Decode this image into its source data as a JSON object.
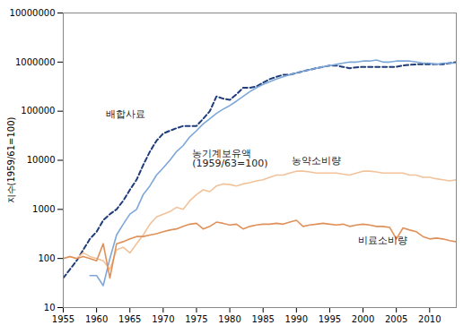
{
  "chart_data": {
    "type": "line",
    "log": "y",
    "grid": false,
    "y_label": "지수(1959/61=100)",
    "xlim": [
      1955,
      2014
    ],
    "xticks": [
      1955,
      1960,
      1965,
      1970,
      1975,
      1980,
      1985,
      1990,
      1995,
      2000,
      2005,
      2010
    ],
    "ylim": [
      10,
      10000000
    ],
    "yticks": [
      10,
      100,
      1000,
      10000,
      100000,
      1000000,
      10000000
    ],
    "x": [
      1955,
      1956,
      1957,
      1958,
      1959,
      1960,
      1961,
      1962,
      1963,
      1964,
      1965,
      1966,
      1967,
      1968,
      1969,
      1970,
      1971,
      1972,
      1973,
      1974,
      1975,
      1976,
      1977,
      1978,
      1979,
      1980,
      1981,
      1982,
      1983,
      1984,
      1985,
      1986,
      1987,
      1988,
      1989,
      1990,
      1991,
      1992,
      1993,
      1994,
      1995,
      1996,
      1997,
      1998,
      1999,
      2000,
      2001,
      2002,
      2003,
      2004,
      2005,
      2006,
      2007,
      2008,
      2009,
      2010,
      2011,
      2012,
      2013,
      2014
    ],
    "series": [
      {
        "name": "배합사료",
        "color": "#1f3d7a",
        "line_style": "dashed",
        "values": [
          40,
          60,
          90,
          150,
          250,
          350,
          600,
          800,
          1000,
          1500,
          2500,
          4000,
          8000,
          15000,
          25000,
          35000,
          40000,
          45000,
          50000,
          50000,
          50000,
          70000,
          100000,
          200000,
          180000,
          170000,
          220000,
          300000,
          300000,
          320000,
          380000,
          450000,
          500000,
          550000,
          550000,
          600000,
          650000,
          700000,
          750000,
          800000,
          850000,
          850000,
          800000,
          750000,
          780000,
          800000,
          800000,
          800000,
          800000,
          800000,
          800000,
          850000,
          880000,
          900000,
          900000,
          900000,
          900000,
          900000,
          950000,
          1000000
        ]
      },
      {
        "name": "농기계보유액\n(1959/63=100)",
        "color": "#7da7d9",
        "line_style": "solid",
        "values": [
          null,
          null,
          null,
          null,
          45,
          45,
          28,
          100,
          300,
          500,
          800,
          1000,
          2000,
          3000,
          5000,
          7000,
          10000,
          15000,
          20000,
          30000,
          40000,
          55000,
          70000,
          90000,
          110000,
          130000,
          160000,
          200000,
          250000,
          300000,
          350000,
          400000,
          450000,
          500000,
          550000,
          600000,
          650000,
          700000,
          750000,
          800000,
          850000,
          900000,
          950000,
          1000000,
          1000000,
          1050000,
          1050000,
          1100000,
          1000000,
          1000000,
          1050000,
          1050000,
          1050000,
          1000000,
          950000,
          950000,
          900000,
          950000,
          950000,
          950000
        ]
      },
      {
        "name": "농약소비량",
        "color": "#f2c29b",
        "line_style": "solid",
        "values": [
          100,
          110,
          100,
          130,
          110,
          100,
          90,
          60,
          150,
          170,
          130,
          200,
          300,
          500,
          700,
          800,
          900,
          1100,
          1000,
          1500,
          2000,
          2500,
          2300,
          3000,
          3300,
          3200,
          3000,
          3300,
          3500,
          3800,
          4000,
          4500,
          5000,
          5000,
          5500,
          6000,
          6000,
          5800,
          5500,
          5500,
          5500,
          5500,
          5200,
          5000,
          5500,
          6000,
          6000,
          5800,
          5500,
          5500,
          5500,
          5500,
          5000,
          5000,
          4500,
          4500,
          4200,
          4000,
          3800,
          4000
        ]
      },
      {
        "name": "비료소비량",
        "color": "#e0915a",
        "line_style": "solid",
        "values": [
          100,
          110,
          100,
          110,
          100,
          90,
          200,
          40,
          200,
          220,
          250,
          280,
          280,
          300,
          320,
          350,
          380,
          400,
          450,
          500,
          520,
          400,
          450,
          550,
          520,
          480,
          500,
          400,
          450,
          480,
          500,
          500,
          520,
          500,
          550,
          600,
          450,
          480,
          500,
          520,
          500,
          480,
          500,
          450,
          480,
          500,
          480,
          450,
          450,
          430,
          250,
          420,
          380,
          350,
          280,
          250,
          260,
          250,
          230,
          220
        ]
      }
    ]
  }
}
